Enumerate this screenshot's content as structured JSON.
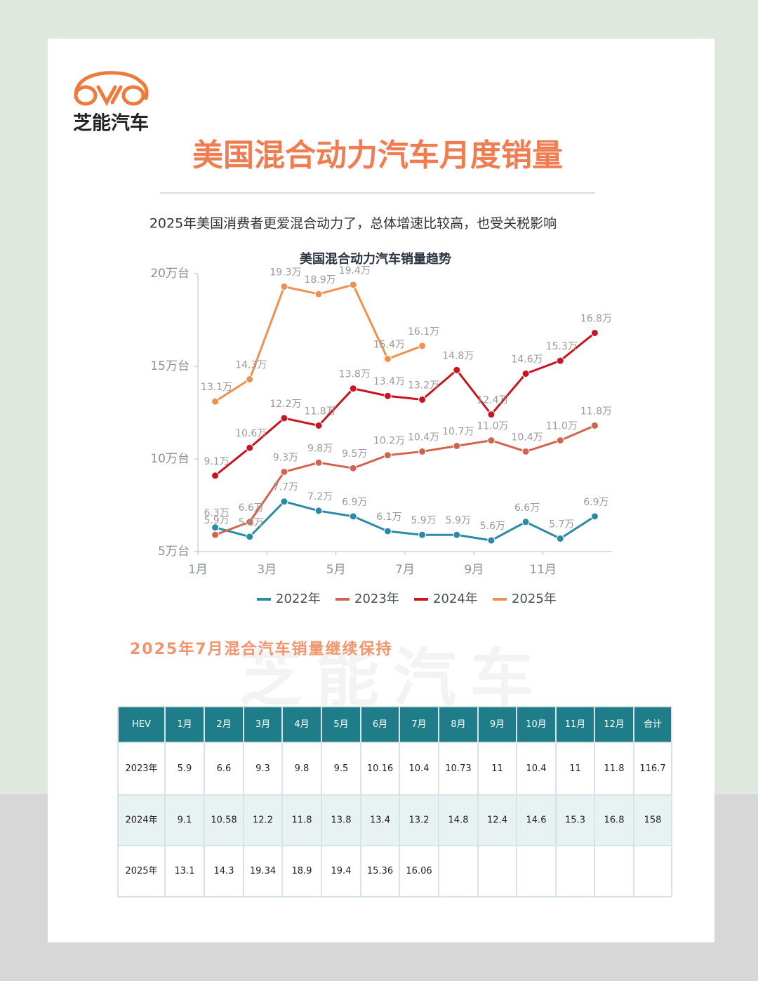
{
  "logo": {
    "text": "芝能汽车"
  },
  "header": {
    "title": "美国混合动力汽车月度销量",
    "subtitle": "2025年美国消费者更爱混合动力了，总体增速比较高，也受关税影响"
  },
  "chart_data": {
    "type": "line",
    "title": "美国混合动力汽车销量趋势",
    "x": [
      1.5,
      2.5,
      3.5,
      4.5,
      5.5,
      6.5,
      7.5,
      8.5,
      9.5,
      10.5,
      11.5,
      12.5
    ],
    "xlim": [
      1,
      13
    ],
    "xticks": [
      {
        "value": 1,
        "label": "1月"
      },
      {
        "value": 3,
        "label": "3月"
      },
      {
        "value": 5,
        "label": "5月"
      },
      {
        "value": 7,
        "label": "7月"
      },
      {
        "value": 9,
        "label": "9月"
      },
      {
        "value": 11,
        "label": "11月"
      }
    ],
    "ylim": [
      5,
      20
    ],
    "yticks": [
      {
        "value": 5,
        "label": "5万台"
      },
      {
        "value": 10,
        "label": "10万台"
      },
      {
        "value": 15,
        "label": "15万台"
      },
      {
        "value": 20,
        "label": "20万台"
      }
    ],
    "legend": "bottom",
    "series": [
      {
        "name": "2022年",
        "color": "#2b8ba6",
        "values": [
          6.3,
          5.8,
          7.7,
          7.2,
          6.9,
          6.1,
          5.9,
          5.9,
          5.6,
          6.6,
          5.7,
          6.9
        ],
        "value_labels": [
          "6.3万",
          "5.8万",
          "7.7万",
          "7.2万",
          "6.9万",
          "6.1万",
          "5.9万",
          "5.9万",
          "5.6万",
          "6.6万",
          "5.7万",
          "6.9万"
        ]
      },
      {
        "name": "2023年",
        "color": "#d2634f",
        "values": [
          5.9,
          6.6,
          9.3,
          9.8,
          9.5,
          10.2,
          10.4,
          10.7,
          11.0,
          10.4,
          11.0,
          11.8
        ],
        "value_labels": [
          "5.9万",
          "6.6万",
          "9.3万",
          "9.8万",
          "9.5万",
          "10.2万",
          "10.4万",
          "10.7万",
          "11.0万",
          "10.4万",
          "11.0万",
          "11.8万"
        ]
      },
      {
        "name": "2024年",
        "color": "#c8151f",
        "values": [
          9.1,
          10.6,
          12.2,
          11.8,
          13.8,
          13.4,
          13.2,
          14.8,
          12.4,
          14.6,
          15.3,
          16.8
        ],
        "value_labels": [
          "9.1万",
          "10.6万",
          "12.2万",
          "11.8万",
          "13.8万",
          "13.4万",
          "13.2万",
          "14.8万",
          "12.4万",
          "14.6万",
          "15.3万",
          "16.8万"
        ]
      },
      {
        "name": "2025年",
        "color": "#f0904f",
        "values": [
          13.1,
          14.3,
          19.3,
          18.9,
          19.4,
          15.4,
          16.1,
          null,
          null,
          null,
          null,
          null
        ],
        "value_labels": [
          "13.1万",
          "14.3万",
          "19.3万",
          "18.9万",
          "19.4万",
          "15.4万",
          "16.1万",
          null,
          null,
          null,
          null,
          null
        ]
      }
    ]
  },
  "section": {
    "title": "2025年7月混合汽车销量继续保持"
  },
  "table": {
    "header": [
      "HEV",
      "1月",
      "2月",
      "3月",
      "4月",
      "5月",
      "6月",
      "7月",
      "8月",
      "9月",
      "10月",
      "11月",
      "12月",
      "合计"
    ],
    "rows": [
      [
        "2023年",
        "5.9",
        "6.6",
        "9.3",
        "9.8",
        "9.5",
        "10.16",
        "10.4",
        "10.73",
        "11",
        "10.4",
        "11",
        "11.8",
        "116.7"
      ],
      [
        "2024年",
        "9.1",
        "10.58",
        "12.2",
        "11.8",
        "13.8",
        "13.4",
        "13.2",
        "14.8",
        "12.4",
        "14.6",
        "15.3",
        "16.8",
        "158"
      ],
      [
        "2025年",
        "13.1",
        "14.3",
        "19.34",
        "18.9",
        "19.4",
        "15.36",
        "16.06"
      ]
    ]
  }
}
